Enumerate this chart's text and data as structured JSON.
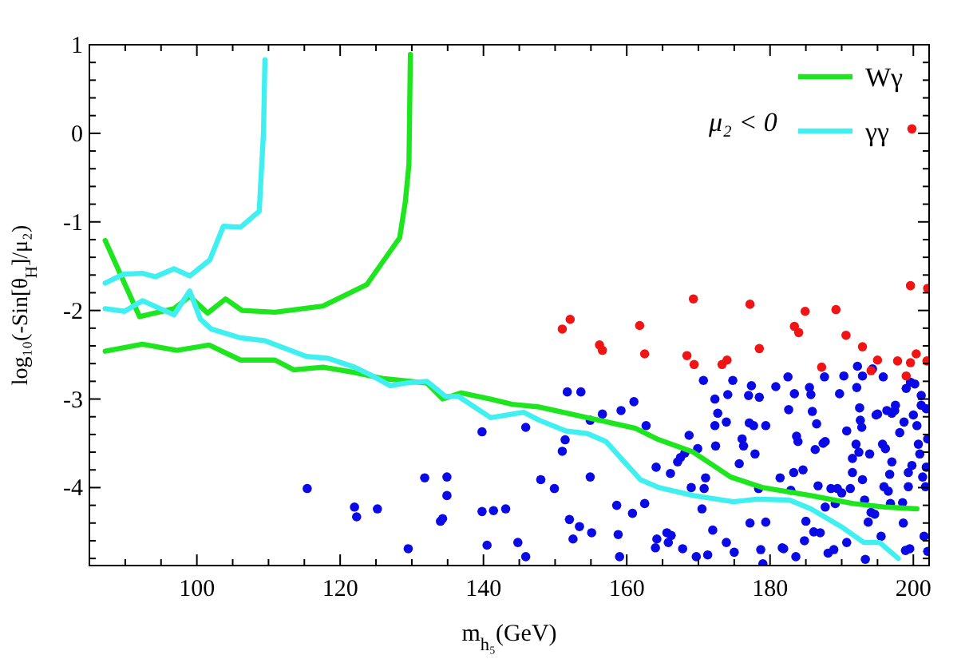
{
  "chart_data": {
    "type": "line",
    "xlabel": "m$_{h₅}$(GeV)",
    "ylabel": "log₁₀(-Sin[θ$_{H}$]/μ₂)",
    "annotations": [
      "μ₂ < 0"
    ],
    "legend": "top right",
    "xlim": [
      85,
      202.2
    ],
    "ylim": [
      -4.88,
      1
    ],
    "xticks": [
      {
        "value": 85,
        "label": null
      },
      {
        "value": 90,
        "label": null
      },
      {
        "value": 95,
        "label": null
      },
      100,
      {
        "value": 105,
        "label": null
      },
      {
        "value": 110,
        "label": null
      },
      {
        "value": 115,
        "label": null
      },
      120,
      {
        "value": 125,
        "label": null
      },
      {
        "value": 130,
        "label": null
      },
      {
        "value": 135,
        "label": null
      },
      140,
      {
        "value": 145,
        "label": null
      },
      {
        "value": 150,
        "label": null
      },
      {
        "value": 155,
        "label": null
      },
      160,
      {
        "value": 165,
        "label": null
      },
      {
        "value": 170,
        "label": null
      },
      {
        "value": 175,
        "label": null
      },
      180,
      {
        "value": 185,
        "label": null
      },
      {
        "value": 190,
        "label": null
      },
      {
        "value": 195,
        "label": null
      },
      200
    ],
    "yticks": [
      {
        "value": -4.8,
        "label": null
      },
      {
        "value": -4.6,
        "label": null
      },
      {
        "value": -4.4,
        "label": null
      },
      {
        "value": -4.2,
        "label": null
      },
      -4,
      {
        "value": -3.8,
        "label": null
      },
      {
        "value": -3.6,
        "label": null
      },
      {
        "value": -3.4,
        "label": null
      },
      {
        "value": -3.2,
        "label": null
      },
      -3,
      {
        "value": -2.8,
        "label": null
      },
      {
        "value": -2.6,
        "label": null
      },
      {
        "value": -2.4,
        "label": null
      },
      {
        "value": -2.2,
        "label": null
      },
      -2,
      {
        "value": -1.8,
        "label": null
      },
      {
        "value": -1.6,
        "label": null
      },
      {
        "value": -1.4,
        "label": null
      },
      {
        "value": -1.2,
        "label": null
      },
      -1,
      {
        "value": -0.8,
        "label": null
      },
      {
        "value": -0.6,
        "label": null
      },
      {
        "value": -0.4,
        "label": null
      },
      {
        "value": -0.2,
        "label": null
      },
      0,
      {
        "value": 0.2,
        "label": null
      },
      {
        "value": 0.4,
        "label": null
      },
      {
        "value": 0.6,
        "label": null
      },
      {
        "value": 0.8,
        "label": null
      },
      1
    ],
    "series": [
      {
        "type": "scatter",
        "marker": "circle",
        "color": "#0a0ae6",
        "x": [
          115.4,
          122.0,
          122.3,
          125.2,
          129.5,
          131.8,
          134.0,
          134.3,
          134.9,
          134.9,
          139.8,
          139.8,
          140.5,
          141.4,
          143.1,
          144.8,
          145.9,
          145.9,
          148.0,
          149.9,
          151.0,
          151.4,
          151.7,
          152.0,
          152.5,
          153.4,
          153.6,
          154.9,
          154.9,
          155.1,
          156.6,
          158.6,
          158.8,
          159.0,
          159.2,
          160.8,
          161.0,
          162.5,
          162.7,
          164.0,
          164.1,
          164.2,
          165.6,
          165.8,
          166.1,
          166.2,
          167.1,
          167.5,
          167.8,
          168.1,
          168.7,
          169.0,
          169.7,
          169.9,
          170.5,
          170.7,
          170.8,
          171.0,
          171.3,
          172.0,
          172.3,
          172.3,
          172.4,
          172.7,
          173.9,
          173.9,
          174.1,
          174.8,
          175.0,
          175.7,
          176.1,
          176.3,
          177.0,
          177.1,
          177.2,
          177.4,
          177.7,
          177.9,
          178.4,
          178.5,
          178.7,
          179.0,
          179.4,
          179.4,
          180.8,
          181.4,
          181.7,
          181.9,
          182.5,
          182.6,
          182.9,
          183.3,
          183.4,
          183.7,
          183.9,
          183.6,
          184.6,
          184.8,
          185.0,
          185.5,
          185.7,
          185.9,
          186.1,
          186.3,
          186.5,
          186.7,
          187.0,
          187.4,
          187.6,
          187.7,
          187.7,
          188.1,
          188.5,
          188.9,
          189.1,
          189.4,
          189.7,
          190.0,
          190.3,
          190.7,
          190.7,
          191.2,
          191.5,
          191.5,
          192.0,
          192.1,
          192.2,
          192.4,
          192.5,
          192.6,
          192.8,
          192.9,
          192.9,
          193.2,
          193.3,
          193.7,
          193.9,
          194.1,
          194.3,
          194.6,
          194.8,
          195.0,
          195.5,
          195.7,
          195.8,
          195.9,
          196.1,
          196.3,
          196.5,
          196.7,
          196.8,
          197.0,
          197.0,
          197.4,
          197.5,
          198.1,
          198.5,
          198.6,
          198.7,
          198.9,
          199.0,
          199.3,
          199.3,
          199.5,
          199.6,
          199.8,
          200.0,
          200.2,
          200.5,
          200.7,
          200.9,
          201.1,
          201.1,
          201.3,
          201.5,
          201.7,
          201.8,
          201.8,
          202.0,
          202.0
        ],
        "values": [
          -4.01,
          -4.22,
          -4.33,
          -4.24,
          -4.69,
          -3.89,
          -4.38,
          -4.35,
          -3.88,
          -4.09,
          -3.37,
          -4.27,
          -4.65,
          -4.26,
          -4.24,
          -4.62,
          -3.32,
          -4.78,
          -3.91,
          -4.01,
          -3.59,
          -3.46,
          -2.92,
          -4.36,
          -4.58,
          -4.44,
          -2.92,
          -3.24,
          -3.88,
          -4.51,
          -3.17,
          -4.2,
          -4.53,
          -4.78,
          -3.13,
          -4.29,
          -3.03,
          -4.18,
          -3.3,
          -4.68,
          -3.77,
          -4.58,
          -4.51,
          -4.62,
          -3.84,
          -4.54,
          -3.71,
          -3.66,
          -4.69,
          -3.61,
          -3.41,
          -4.0,
          -4.78,
          -3.56,
          -4.24,
          -2.79,
          -4.01,
          -3.89,
          -4.76,
          -4.48,
          -3.3,
          -3.0,
          -3.53,
          -3.16,
          -3.26,
          -4.62,
          -2.95,
          -2.79,
          -4.73,
          -3.73,
          -3.45,
          -3.53,
          -2.96,
          -3.27,
          -4.4,
          -2.85,
          -3.3,
          -3.62,
          -4.01,
          -2.98,
          -4.7,
          -4.86,
          -4.39,
          -3.3,
          -2.86,
          -3.89,
          -4.68,
          -4.69,
          -2.75,
          -3.12,
          -4.03,
          -3.83,
          -2.94,
          -3.42,
          -3.48,
          -4.78,
          -3.8,
          -4.6,
          -4.38,
          -2.87,
          -2.95,
          -3.14,
          -4.5,
          -3.57,
          -3.28,
          -3.98,
          -4.51,
          -3.5,
          -2.75,
          -4.22,
          -3.48,
          -4.74,
          -4.01,
          -4.7,
          -4.18,
          -4.01,
          -2.94,
          -4.06,
          -2.74,
          -3.36,
          -4.62,
          -4.01,
          -3.83,
          -3.67,
          -3.51,
          -2.87,
          -2.63,
          -3.6,
          -3.1,
          -3.24,
          -3.32,
          -2.74,
          -3.91,
          -4.14,
          -4.81,
          -4.39,
          -3.62,
          -4.28,
          -2.66,
          -4.3,
          -3.18,
          -3.17,
          -4.55,
          -3.51,
          -2.75,
          -3.99,
          -3.56,
          -3.13,
          -4.04,
          -3.85,
          -4.18,
          -3.16,
          -3.71,
          -3.13,
          -3.07,
          -3.38,
          -4.17,
          -4.4,
          -3.26,
          -4.71,
          -2.88,
          -3.83,
          -3.99,
          -4.69,
          -2.81,
          -3.75,
          -3.18,
          -2.83,
          -3.3,
          -3.51,
          -3.62,
          -2.96,
          -3.07,
          -3.88,
          -4.55,
          -3.99,
          -3.11,
          -3.77,
          -3.45,
          -4.72
        ]
      },
      {
        "type": "scatter",
        "marker": "circle",
        "color": "#f01414",
        "x": [
          151.0,
          152.1,
          156.2,
          156.6,
          161.8,
          162.5,
          168.4,
          169.4,
          169.3,
          173.3,
          174.0,
          177.2,
          178.5,
          183.4,
          184.0,
          184.9,
          187.2,
          189.2,
          190.6,
          192.9,
          194.1,
          195.0,
          197.8,
          199.0,
          199.6,
          199.6,
          200.4,
          201.9,
          202.0,
          199.8
        ],
        "values": [
          -2.21,
          -2.1,
          -2.39,
          -2.45,
          -2.17,
          -2.49,
          -2.51,
          -2.61,
          -1.87,
          -2.61,
          -2.56,
          -1.93,
          -2.43,
          -2.18,
          -2.25,
          -2.01,
          -2.64,
          -1.99,
          -2.28,
          -2.41,
          -2.68,
          -2.56,
          -2.57,
          -2.74,
          -1.72,
          -2.59,
          -2.49,
          -2.57,
          -1.75,
          0.05
        ]
      },
      {
        "name": "Wγ",
        "color": "#1ee61e",
        "x": [
          87.2,
          92.0,
          96.8,
          99.0,
          101.5,
          104.0,
          106.3,
          110.9,
          117.6,
          123.7,
          128.3,
          129.1,
          129.6,
          129.8
        ],
        "values": [
          -1.21,
          -2.07,
          -1.98,
          -1.84,
          -2.03,
          -1.87,
          -2.0,
          -2.02,
          -1.95,
          -1.71,
          -1.18,
          -0.77,
          -0.35,
          0.89
        ]
      },
      {
        "color": "#1ee61e",
        "x": [
          87.2,
          92.4,
          97.2,
          101.7,
          106.1,
          110.9,
          113.5,
          117.6,
          122.0,
          126.1,
          132.1,
          134.3,
          136.9,
          141.0,
          144.0,
          147.8,
          154.5,
          161.2,
          164.2,
          169.3,
          174.5,
          179.0,
          185.7,
          191.6,
          196.1,
          200.5
        ],
        "values": [
          -2.46,
          -2.38,
          -2.45,
          -2.39,
          -2.56,
          -2.56,
          -2.67,
          -2.64,
          -2.7,
          -2.77,
          -2.82,
          -3.0,
          -2.93,
          -3.0,
          -3.06,
          -3.09,
          -3.21,
          -3.33,
          -3.45,
          -3.6,
          -3.88,
          -4.0,
          -4.09,
          -4.18,
          -4.22,
          -4.24
        ]
      },
      {
        "name": "γγ",
        "color": "#40f0f0",
        "x": [
          87.2,
          89.8,
          92.4,
          94.2,
          96.8,
          99.0,
          101.8,
          103.7,
          106.1,
          108.7,
          109.3,
          109.5
        ],
        "values": [
          -1.69,
          -1.59,
          -1.58,
          -1.62,
          -1.53,
          -1.61,
          -1.43,
          -1.05,
          -1.06,
          -0.88,
          0.01,
          0.83
        ]
      },
      {
        "color": "#40f0f0",
        "x": [
          87.2,
          89.9,
          92.4,
          96.8,
          99.0,
          100.5,
          102.0,
          106.1,
          109.4,
          115.3,
          118.3,
          122.0,
          124.3,
          127.0,
          129.1,
          132.1,
          134.7,
          136.5,
          141.0,
          145.6,
          147.8,
          151.5,
          154.5,
          157.1,
          161.9,
          164.5,
          169.3,
          174.9,
          178.2,
          182.7,
          185.7,
          190.1,
          193.1,
          195.3,
          197.9
        ],
        "values": [
          -1.98,
          -2.01,
          -1.89,
          -2.05,
          -1.78,
          -2.1,
          -2.21,
          -2.31,
          -2.34,
          -2.52,
          -2.54,
          -2.64,
          -2.73,
          -2.85,
          -2.82,
          -2.8,
          -2.97,
          -2.97,
          -3.21,
          -3.15,
          -3.24,
          -3.36,
          -3.39,
          -3.48,
          -3.91,
          -4.0,
          -4.09,
          -4.16,
          -4.13,
          -4.14,
          -4.24,
          -4.45,
          -4.62,
          -4.62,
          -4.8
        ]
      }
    ]
  }
}
